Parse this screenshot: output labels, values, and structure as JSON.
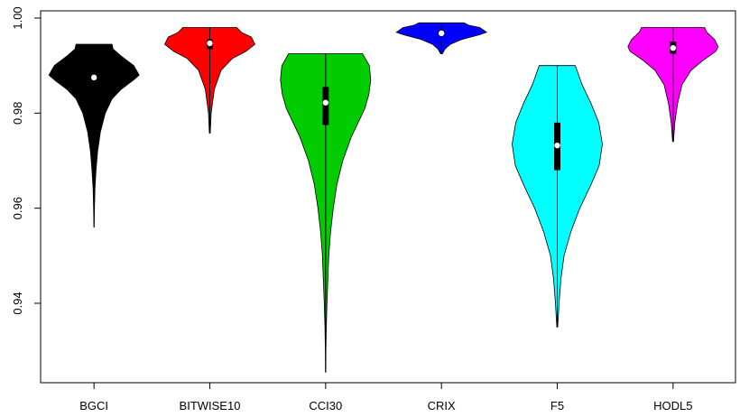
{
  "chart_data": {
    "type": "violin",
    "title": "",
    "xlabel": "",
    "ylabel": "",
    "ylim": [
      0.925,
      1.0
    ],
    "yticks": [
      0.94,
      0.96,
      0.98,
      1.0
    ],
    "ytick_labels": [
      "0.94",
      "0.96",
      "0.98",
      "1.00"
    ],
    "grid": false,
    "categories": [
      "BGCI",
      "BITWISE10",
      "CCI30",
      "CRIX",
      "F5",
      "HODL5"
    ],
    "series": [
      {
        "category": "BGCI",
        "color": "#000000",
        "min": 0.956,
        "max": 0.9945,
        "q1": 0.9865,
        "q3": 0.9895,
        "median": 0.9875,
        "density": [
          [
            0.956,
            0.002
          ],
          [
            0.96,
            0.01
          ],
          [
            0.964,
            0.02
          ],
          [
            0.968,
            0.045
          ],
          [
            0.972,
            0.08
          ],
          [
            0.976,
            0.14
          ],
          [
            0.98,
            0.25
          ],
          [
            0.983,
            0.4
          ],
          [
            0.985,
            0.6
          ],
          [
            0.987,
            0.88
          ],
          [
            0.988,
            1.0
          ],
          [
            0.99,
            0.88
          ],
          [
            0.992,
            0.6
          ],
          [
            0.9935,
            0.42
          ],
          [
            0.9945,
            0.4
          ]
        ]
      },
      {
        "category": "BITWISE10",
        "color": "#ff0000",
        "min": 0.9758,
        "max": 0.998,
        "q1": 0.9935,
        "q3": 0.9955,
        "median": 0.9947,
        "density": [
          [
            0.9758,
            0.01
          ],
          [
            0.98,
            0.03
          ],
          [
            0.985,
            0.1
          ],
          [
            0.989,
            0.25
          ],
          [
            0.9915,
            0.5
          ],
          [
            0.993,
            0.8
          ],
          [
            0.9945,
            1.0
          ],
          [
            0.996,
            0.92
          ],
          [
            0.997,
            0.7
          ],
          [
            0.998,
            0.6
          ]
        ]
      },
      {
        "category": "CCI30",
        "color": "#00cc00",
        "min": 0.9255,
        "max": 0.9925,
        "q1": 0.9775,
        "q3": 0.9855,
        "median": 0.9822,
        "density": [
          [
            0.9255,
            0.003
          ],
          [
            0.93,
            0.006
          ],
          [
            0.935,
            0.015
          ],
          [
            0.94,
            0.03
          ],
          [
            0.945,
            0.05
          ],
          [
            0.95,
            0.07
          ],
          [
            0.955,
            0.11
          ],
          [
            0.96,
            0.17
          ],
          [
            0.965,
            0.25
          ],
          [
            0.97,
            0.38
          ],
          [
            0.975,
            0.57
          ],
          [
            0.978,
            0.72
          ],
          [
            0.981,
            0.87
          ],
          [
            0.984,
            0.96
          ],
          [
            0.987,
            1.0
          ],
          [
            0.99,
            0.97
          ],
          [
            0.9925,
            0.82
          ]
        ]
      },
      {
        "category": "CRIX",
        "color": "#0000ff",
        "min": 0.9925,
        "max": 0.999,
        "q1": 0.9963,
        "q3": 0.9975,
        "median": 0.9968,
        "density": [
          [
            0.9925,
            0.02
          ],
          [
            0.9935,
            0.08
          ],
          [
            0.9945,
            0.2
          ],
          [
            0.9955,
            0.45
          ],
          [
            0.9965,
            0.85
          ],
          [
            0.997,
            1.0
          ],
          [
            0.998,
            0.85
          ],
          [
            0.9985,
            0.6
          ],
          [
            0.999,
            0.5
          ]
        ]
      },
      {
        "category": "F5",
        "color": "#00ffff",
        "min": 0.935,
        "max": 0.99,
        "q1": 0.968,
        "q3": 0.978,
        "median": 0.9732,
        "density": [
          [
            0.935,
            0.01
          ],
          [
            0.94,
            0.04
          ],
          [
            0.945,
            0.08
          ],
          [
            0.95,
            0.15
          ],
          [
            0.955,
            0.3
          ],
          [
            0.96,
            0.5
          ],
          [
            0.965,
            0.75
          ],
          [
            0.969,
            0.93
          ],
          [
            0.9735,
            1.0
          ],
          [
            0.978,
            0.92
          ],
          [
            0.982,
            0.75
          ],
          [
            0.986,
            0.55
          ],
          [
            0.99,
            0.4
          ]
        ]
      },
      {
        "category": "HODL5",
        "color": "#ff00ff",
        "min": 0.974,
        "max": 0.998,
        "q1": 0.9925,
        "q3": 0.995,
        "median": 0.9937,
        "density": [
          [
            0.974,
            0.01
          ],
          [
            0.978,
            0.04
          ],
          [
            0.982,
            0.1
          ],
          [
            0.986,
            0.2
          ],
          [
            0.989,
            0.4
          ],
          [
            0.991,
            0.65
          ],
          [
            0.993,
            0.95
          ],
          [
            0.994,
            1.0
          ],
          [
            0.9955,
            0.92
          ],
          [
            0.997,
            0.75
          ],
          [
            0.998,
            0.7
          ]
        ]
      }
    ]
  }
}
